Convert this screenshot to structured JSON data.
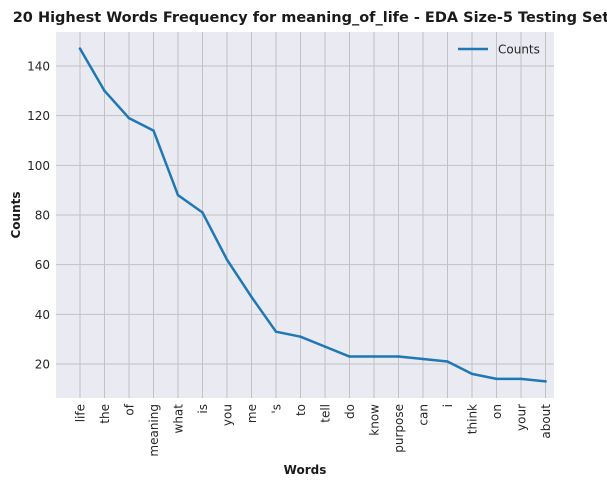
{
  "chart_data": {
    "type": "line",
    "title": "20 Highest Words Frequency for meaning_of_life - EDA Size-5 Testing Set",
    "xlabel": "Words",
    "ylabel": "Counts",
    "categories": [
      "life",
      "the",
      "of",
      "meaning",
      "what",
      "is",
      "you",
      "me",
      "'s",
      "to",
      "tell",
      "do",
      "know",
      "purpose",
      "can",
      "i",
      "think",
      "on",
      "your",
      "about"
    ],
    "series": [
      {
        "name": "Counts",
        "color": "#1f77b4",
        "values": [
          147,
          130,
          119,
          114,
          88,
          81,
          62,
          47,
          33,
          31,
          27,
          23,
          23,
          23,
          22,
          21,
          16,
          14,
          14,
          13
        ]
      }
    ],
    "ylim": [
      6.3,
      153.7
    ],
    "yticks": [
      20,
      40,
      60,
      80,
      100,
      120,
      140
    ],
    "grid": true,
    "legend_position": "top-right",
    "colors": {
      "plot_background": "#eaeaf2",
      "grid": "#c2c2c2",
      "line": "#1f77b4"
    }
  }
}
